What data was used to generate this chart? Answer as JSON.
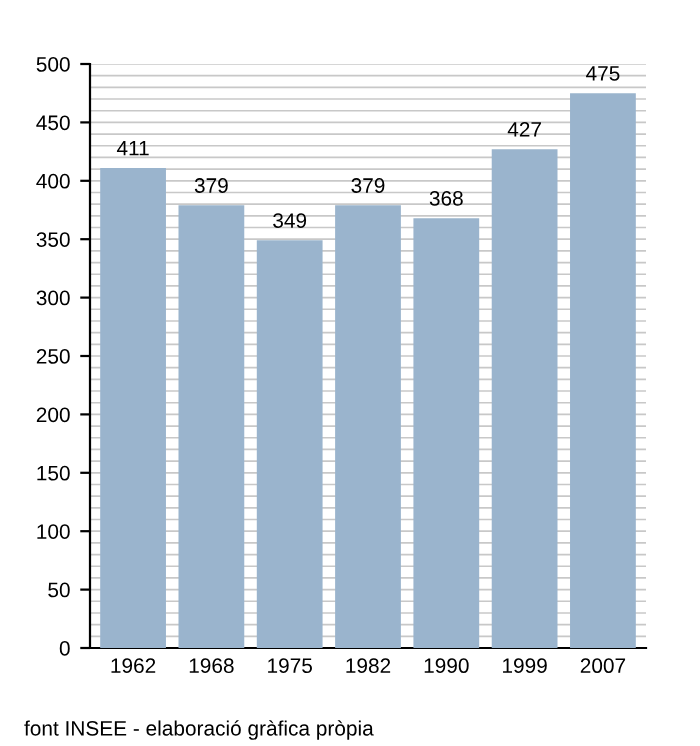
{
  "chart_data": {
    "type": "bar",
    "categories": [
      "1962",
      "1968",
      "1975",
      "1982",
      "1990",
      "1999",
      "2007"
    ],
    "values": [
      411,
      379,
      349,
      379,
      368,
      427,
      475
    ],
    "color": "#9ab4cd",
    "data_labels": true,
    "ylim": [
      0,
      500
    ],
    "yticks": [
      0,
      {
        "value": 10,
        "label": null
      },
      {
        "value": 20,
        "label": null
      },
      {
        "value": 30,
        "label": null
      },
      {
        "value": 40,
        "label": null
      },
      50,
      {
        "value": 60,
        "label": null
      },
      {
        "value": 70,
        "label": null
      },
      {
        "value": 80,
        "label": null
      },
      {
        "value": 90,
        "label": null
      },
      100,
      {
        "value": 110,
        "label": null
      },
      {
        "value": 120,
        "label": null
      },
      {
        "value": 130,
        "label": null
      },
      {
        "value": 140,
        "label": null
      },
      150,
      {
        "value": 160,
        "label": null
      },
      {
        "value": 170,
        "label": null
      },
      {
        "value": 180,
        "label": null
      },
      {
        "value": 190,
        "label": null
      },
      200,
      {
        "value": 210,
        "label": null
      },
      {
        "value": 220,
        "label": null
      },
      {
        "value": 230,
        "label": null
      },
      {
        "value": 240,
        "label": null
      },
      250,
      {
        "value": 260,
        "label": null
      },
      {
        "value": 270,
        "label": null
      },
      {
        "value": 280,
        "label": null
      },
      {
        "value": 290,
        "label": null
      },
      300,
      {
        "value": 310,
        "label": null
      },
      {
        "value": 320,
        "label": null
      },
      {
        "value": 330,
        "label": null
      },
      {
        "value": 340,
        "label": null
      },
      350,
      {
        "value": 360,
        "label": null
      },
      {
        "value": 370,
        "label": null
      },
      {
        "value": 380,
        "label": null
      },
      {
        "value": 390,
        "label": null
      },
      400,
      {
        "value": 410,
        "label": null
      },
      {
        "value": 420,
        "label": null
      },
      {
        "value": 430,
        "label": null
      },
      {
        "value": 440,
        "label": null
      },
      450,
      {
        "value": 460,
        "label": null
      },
      {
        "value": 470,
        "label": null
      },
      {
        "value": 480,
        "label": null
      },
      {
        "value": 490,
        "label": null
      },
      500
    ],
    "grid": "y",
    "annotations": [
      "font INSEE - elaboració gràfica pròpia"
    ]
  }
}
